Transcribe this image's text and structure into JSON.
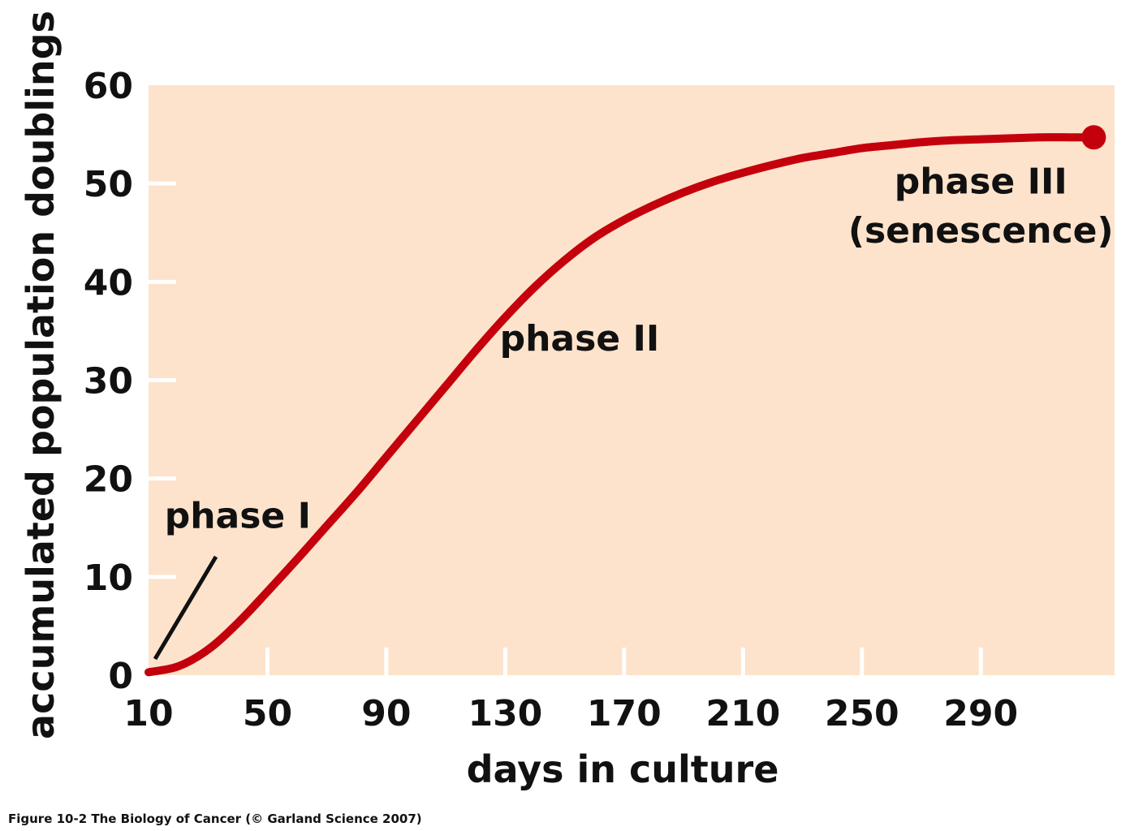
{
  "chart_data": {
    "type": "line",
    "xlabel": "days in culture",
    "ylabel": "accumulated population doublings",
    "xlim": [
      10,
      335
    ],
    "ylim": [
      0,
      60
    ],
    "x_ticks": [
      10,
      50,
      90,
      130,
      170,
      210,
      250,
      290
    ],
    "y_ticks": [
      0,
      10,
      20,
      30,
      40,
      50,
      60
    ],
    "x_tick_labels": [
      "10",
      "50",
      "90",
      "130",
      "170",
      "210",
      "250",
      "290"
    ],
    "y_tick_labels": [
      "0",
      "10",
      "20",
      "30",
      "40",
      "50",
      "60"
    ],
    "grid": false,
    "series": [
      {
        "x": [
          10,
          20,
          30,
          40,
          50,
          60,
          70,
          80,
          90,
          100,
          110,
          120,
          130,
          140,
          150,
          160,
          170,
          180,
          190,
          200,
          210,
          220,
          230,
          240,
          250,
          260,
          270,
          280,
          290,
          300,
          310,
          320,
          328
        ],
        "y": [
          0.3,
          0.9,
          2.6,
          5.3,
          8.5,
          11.8,
          15.2,
          18.6,
          22.2,
          25.8,
          29.4,
          33.0,
          36.4,
          39.5,
          42.2,
          44.5,
          46.3,
          47.8,
          49.1,
          50.2,
          51.1,
          51.9,
          52.6,
          53.1,
          53.6,
          53.9,
          54.2,
          54.4,
          54.5,
          54.6,
          54.7,
          54.7,
          54.7
        ],
        "color": "#c4000c",
        "end_marker": true
      }
    ],
    "annotations": [
      {
        "text": "phase I",
        "x": 40,
        "y": 15
      },
      {
        "text": "phase II",
        "x": 155,
        "y": 33
      },
      {
        "text": "phase III",
        "x": 290,
        "y": 49
      },
      {
        "text": "(senescence)",
        "x": 290,
        "y": 44
      }
    ],
    "colors": {
      "plot_background": "#fde3cc",
      "line": "#c4000c",
      "ticks": "#ffffff"
    }
  },
  "caption": "Figure 10-2  The Biology of Cancer (© Garland Science 2007)"
}
